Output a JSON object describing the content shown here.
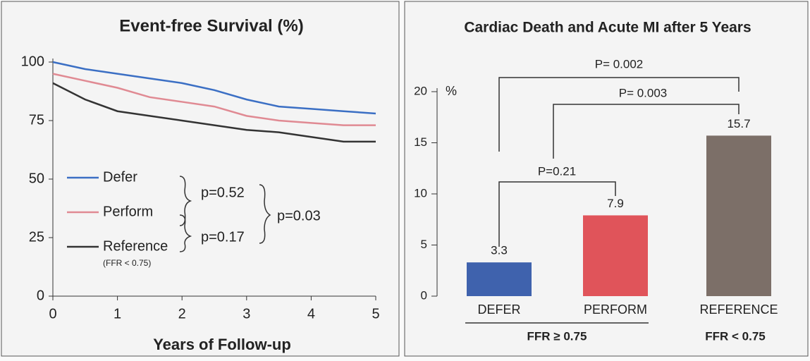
{
  "chart_data": [
    {
      "type": "line",
      "title": "Event-free Survival (%)",
      "x_label": "Years of Follow-up",
      "x": [
        0,
        0.5,
        1,
        1.5,
        2,
        2.5,
        3,
        3.5,
        4,
        4.5,
        5
      ],
      "series": [
        {
          "name": "Defer",
          "color": "#3b6fc4",
          "values": [
            100,
            97,
            95,
            93,
            91,
            88,
            84,
            81,
            80,
            79,
            78
          ]
        },
        {
          "name": "Perform",
          "color": "#e08a93",
          "values": [
            95,
            92,
            89,
            85,
            83,
            81,
            77,
            75,
            74,
            73,
            73
          ]
        },
        {
          "name": "Reference",
          "color": "#333333",
          "values": [
            91,
            84,
            79,
            77,
            75,
            73,
            71,
            70,
            68,
            66,
            66
          ]
        }
      ],
      "legend_note": "(FFR < 0.75)",
      "annotations": [
        "p=0.52",
        "p=0.17",
        "p=0.03"
      ],
      "xlim": [
        0,
        5
      ],
      "xticks": [
        0,
        1,
        2,
        3,
        4,
        5
      ],
      "ylim": [
        0,
        100
      ],
      "yticks": [
        0,
        25,
        50,
        75,
        100
      ]
    },
    {
      "type": "bar",
      "title": "Cardiac Death and Acute MI after 5 Years",
      "y_label": "%",
      "categories": [
        "DEFER",
        "PERFORM",
        "REFERENCE"
      ],
      "values": [
        3.3,
        7.9,
        15.7
      ],
      "colors": [
        "#3f62ad",
        "#e0545a",
        "#7c6f68"
      ],
      "annotations": [
        "P= 0.002",
        "P= 0.003",
        "P=0.21"
      ],
      "group_labels": [
        "FFR ≥ 0.75",
        "FFR < 0.75"
      ],
      "ylim": [
        0,
        20
      ],
      "yticks": [
        0,
        5,
        10,
        15,
        20
      ]
    }
  ]
}
